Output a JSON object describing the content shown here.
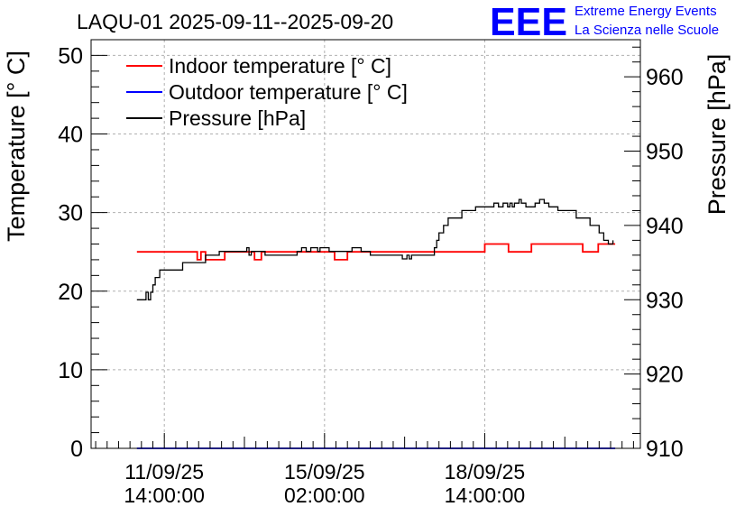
{
  "chart_data": {
    "type": "line",
    "title": "LAQU-01 2025-09-11--2025-09-20",
    "ylabel": "Temperature [° C]",
    "y2label": "Pressure [hPa]",
    "ylim": [
      0,
      52
    ],
    "y2lim": [
      910,
      965
    ],
    "y_ticks": [
      0,
      10,
      20,
      30,
      40,
      50
    ],
    "y2_ticks": [
      910,
      920,
      930,
      940,
      950,
      960
    ],
    "x_ticks": [
      {
        "x": 0.0,
        "line1": "11/09/25",
        "line2": "14:00:00"
      },
      {
        "x": 3.5,
        "line1": "15/09/25",
        "line2": "02:00:00"
      },
      {
        "x": 7.0,
        "line1": "18/09/25",
        "line2": "14:00:00"
      }
    ],
    "xlim": [
      -1.6,
      10.4
    ],
    "grid": true,
    "legend_position": "top-left",
    "colors": {
      "indoor": "#ff0000",
      "outdoor": "#0000ff",
      "pressure": "#000000"
    },
    "series": [
      {
        "name": "Indoor temperature [° C]",
        "axis": "left",
        "color": "#ff0000",
        "x": [
          -0.6,
          0.7,
          0.72,
          0.78,
          0.8,
          0.88,
          0.9,
          1.3,
          1.32,
          1.95,
          1.97,
          2.1,
          2.12,
          3.7,
          3.72,
          3.98,
          4.0,
          6.97,
          7.0,
          7.5,
          7.52,
          8.0,
          8.02,
          8.56,
          8.58,
          9.12,
          9.14,
          9.45,
          9.48,
          9.85
        ],
        "y": [
          25,
          25,
          24,
          24,
          25,
          25,
          24,
          24,
          25,
          25,
          24,
          24,
          25,
          25,
          24,
          24,
          25,
          25,
          26,
          26,
          25,
          25,
          26,
          26,
          26,
          26,
          25,
          25,
          26,
          26
        ]
      },
      {
        "name": "Outdoor temperature [° C]",
        "axis": "left",
        "color": "#0000ff",
        "x": [
          -0.6,
          9.85
        ],
        "y": [
          0,
          0
        ]
      },
      {
        "name": "Pressure [hPa]",
        "axis": "right",
        "color": "#000000",
        "x": [
          -0.6,
          -0.45,
          -0.4,
          -0.35,
          -0.3,
          -0.25,
          -0.2,
          -0.1,
          0.0,
          0.4,
          0.6,
          0.9,
          1.2,
          1.6,
          1.8,
          1.85,
          1.9,
          2.0,
          2.2,
          2.7,
          2.9,
          3.0,
          3.1,
          3.2,
          3.3,
          3.35,
          3.4,
          3.45,
          3.6,
          3.8,
          4.1,
          4.3,
          4.4,
          4.5,
          5.1,
          5.2,
          5.3,
          5.35,
          5.4,
          5.5,
          5.8,
          5.9,
          5.95,
          6.0,
          6.1,
          6.2,
          6.3,
          6.5,
          6.7,
          6.8,
          7.0,
          7.2,
          7.3,
          7.4,
          7.5,
          7.55,
          7.6,
          7.65,
          7.7,
          7.75,
          7.8,
          7.9,
          8.0,
          8.1,
          8.2,
          8.3,
          8.4,
          8.5,
          8.6,
          8.8,
          9.0,
          9.3,
          9.5,
          9.6,
          9.7,
          9.8
        ],
        "y": [
          930,
          930,
          931,
          930,
          931,
          932,
          933,
          934,
          934,
          935,
          935,
          936,
          936.5,
          936.5,
          937,
          936,
          936.5,
          936.5,
          936,
          936,
          936.5,
          937,
          936.5,
          937,
          937,
          936.5,
          937,
          937,
          936.5,
          936.5,
          937,
          936.5,
          936.5,
          936,
          936,
          935.5,
          936,
          935.5,
          936,
          936,
          936,
          937,
          938,
          939,
          940,
          941,
          941,
          942,
          942,
          942.5,
          942.5,
          943,
          942.5,
          943,
          942.5,
          943,
          942.5,
          943,
          943,
          943.5,
          943,
          942.5,
          942.5,
          943,
          943.5,
          943,
          942.5,
          942.5,
          942,
          942,
          941,
          940,
          939,
          938,
          937.5,
          938
        ]
      }
    ]
  },
  "branding": {
    "logo_text": "EEE",
    "line1": "Extreme Energy Events",
    "line2": "La Scienza nelle Scuole",
    "color": "#0000ff"
  }
}
